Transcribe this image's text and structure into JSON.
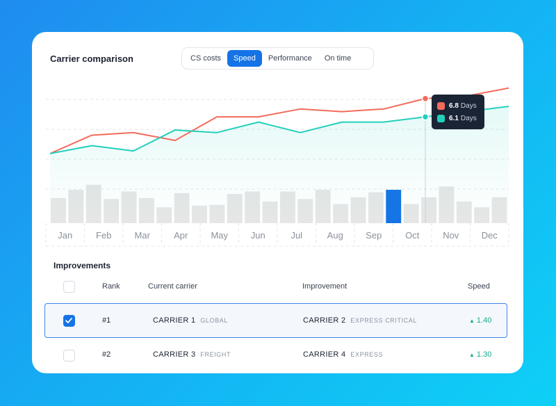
{
  "card": {
    "title": "Carrier comparison",
    "tabs": [
      {
        "label": "CS costs",
        "active": false
      },
      {
        "label": "Speed",
        "active": true
      },
      {
        "label": "Performance",
        "active": false
      },
      {
        "label": "On time",
        "active": false
      }
    ]
  },
  "chart_data": {
    "type": "line",
    "categories": [
      "Jan",
      "Feb",
      "Mar",
      "Apr",
      "May",
      "Jun",
      "Jul",
      "Aug",
      "Sep",
      "Oct",
      "Nov",
      "Dec"
    ],
    "series": [
      {
        "color": "#f36b5c",
        "values": [
          4.7,
          5.4,
          5.5,
          5.2,
          6.1,
          6.1,
          6.4,
          6.3,
          6.4,
          6.8,
          6.9,
          7.2
        ]
      },
      {
        "color": "#22d0bc",
        "values": [
          4.7,
          5.0,
          4.8,
          5.6,
          5.5,
          5.9,
          5.5,
          5.9,
          5.9,
          6.1,
          6.3,
          6.5
        ]
      }
    ],
    "bars": [
      3,
      4,
      4.6,
      2.9,
      3.8,
      3,
      1.9,
      3.6,
      2.1,
      2.2,
      3.5,
      3.8,
      2.6,
      3.8,
      2.9,
      4,
      2.3,
      3.1,
      3.7,
      4,
      2.3,
      3.1,
      4.4,
      2.6,
      1.9,
      3.1
    ],
    "highlight_index": 9,
    "bar_highlight_color": "#1573e6",
    "bar_color": "#e6e6e6",
    "grid": true,
    "tooltip": {
      "items": [
        {
          "color": "#f36b5c",
          "value": "6.8",
          "unit": "Days"
        },
        {
          "color": "#22d0bc",
          "value": "6.1",
          "unit": "Days"
        }
      ]
    }
  },
  "improvements": {
    "title": "Improvements",
    "headers": {
      "rank": "Rank",
      "current": "Current carrier",
      "improvement": "Improvement",
      "speed": "Speed"
    },
    "rows": [
      {
        "rank": "#1",
        "current": "CARRIER 1",
        "current_tag": "GLOBAL",
        "improvement": "CARRIER 2",
        "improvement_tag": "EXPRESS CRITICAL",
        "speed": "1.40",
        "arrow": "▲",
        "checked": true
      },
      {
        "rank": "#2",
        "current": "CARRIER 3",
        "current_tag": "FREIGHT",
        "improvement": "CARRIER 4",
        "improvement_tag": "EXPRESS",
        "speed": "1.30",
        "arrow": "▲",
        "checked": false
      }
    ],
    "check_icon": "check-icon",
    "arrow_icon": "arrow-up-icon"
  }
}
